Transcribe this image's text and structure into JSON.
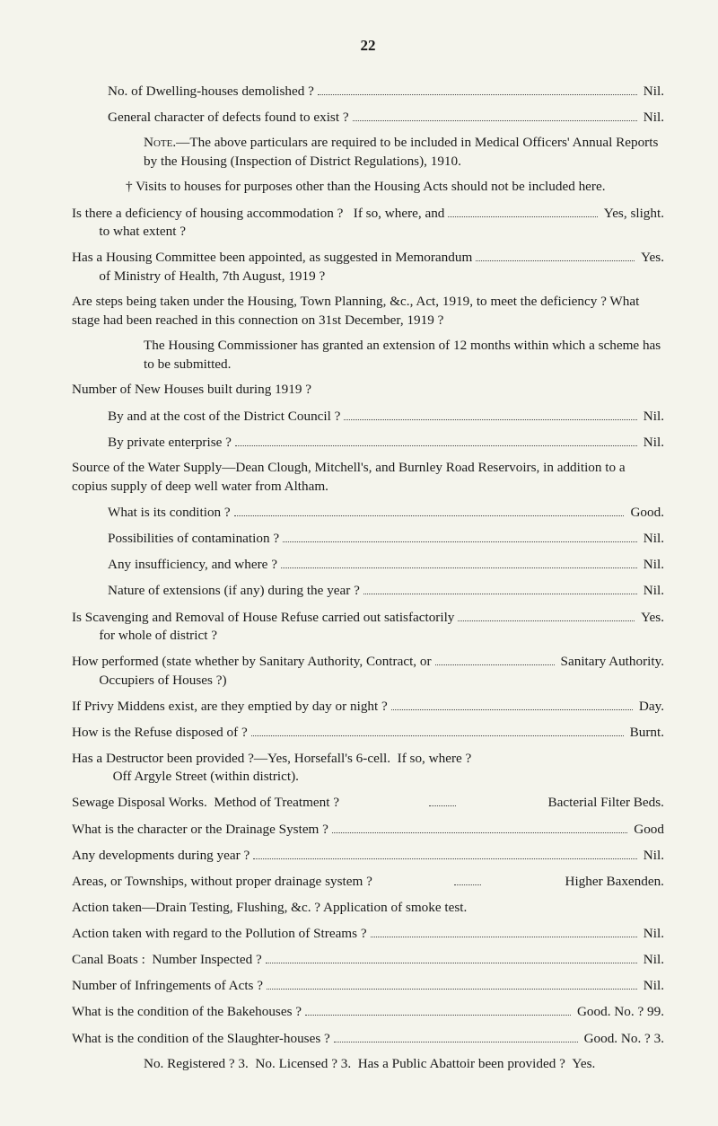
{
  "pageNumber": "22",
  "lines": [
    {
      "type": "qa",
      "indent": 40,
      "q": "No. of Dwelling-houses demolished ?",
      "a": "Nil."
    },
    {
      "type": "qa",
      "indent": 40,
      "q": "General character of defects found to exist ?",
      "a": "Nil."
    },
    {
      "type": "para",
      "indent": 80,
      "html": "<span class='smallcaps'>Note</span>.—The above particulars are required to be included in Medical Officers' Annual Reports by the Housing (Inspection of District Regulations), 1910."
    },
    {
      "type": "para",
      "indent": 60,
      "html": "† Visits to houses for purposes other than the Housing Acts should not be included here."
    },
    {
      "type": "qa",
      "indent": 0,
      "q": "Is there a deficiency of housing accommodation ?   If so, where, and\n        to what extent ?",
      "a": "Yes, slight."
    },
    {
      "type": "qa",
      "indent": 0,
      "q": "Has a Housing Committee been appointed, as suggested in Memorandum\n        of Ministry of Health, 7th August, 1919 ?",
      "a": "Yes."
    },
    {
      "type": "para",
      "indent": 0,
      "html": "Are steps being taken under the Housing, Town Planning, &c., Act, 1919, to meet the deficiency ? What stage had been reached in this connection on 31st December, 1919 ?"
    },
    {
      "type": "para",
      "indent": 80,
      "html": "The Housing Commissioner has granted an extension of 12 months within which a scheme has to be submitted."
    },
    {
      "type": "para",
      "indent": 0,
      "html": "Number of New Houses built during 1919 ?"
    },
    {
      "type": "qa",
      "indent": 40,
      "q": "By and at the cost of the District Council ?",
      "a": "Nil."
    },
    {
      "type": "qa",
      "indent": 40,
      "q": "By private enterprise ?",
      "a": "Nil."
    },
    {
      "type": "para",
      "indent": 0,
      "html": "Source of the Water Supply—Dean Clough, Mitchell's, and Burnley Road Reservoirs, in addition to a copius supply of deep well water from Altham."
    },
    {
      "type": "qa",
      "indent": 40,
      "q": "What is its condition ?",
      "a": "Good."
    },
    {
      "type": "qa",
      "indent": 40,
      "q": "Possibilities of contamination ?",
      "a": "Nil."
    },
    {
      "type": "qa",
      "indent": 40,
      "q": "Any insufficiency, and where ?",
      "a": "Nil."
    },
    {
      "type": "qa",
      "indent": 40,
      "q": "Nature of extensions (if any) during the year ?",
      "a": "Nil."
    },
    {
      "type": "qa",
      "indent": 0,
      "q": "Is Scavenging and Removal of House Refuse carried out satisfactorily\n        for whole of district ?",
      "a": "Yes."
    },
    {
      "type": "qa",
      "indent": 0,
      "q": "How performed (state whether by Sanitary Authority, Contract, or\n        Occupiers of Houses ?)",
      "a": "Sanitary Authority."
    },
    {
      "type": "qa",
      "indent": 0,
      "q": "If Privy Middens exist, are they emptied by day or night ?",
      "a": "Day."
    },
    {
      "type": "qa",
      "indent": 0,
      "q": "How is the Refuse disposed of ?",
      "a": "Burnt."
    },
    {
      "type": "para",
      "indent": 0,
      "html": "Has a Destructor been provided ?—Yes, Horsefall's 6-cell.&nbsp;&nbsp;If so, where ?<br>&nbsp;&nbsp;&nbsp;&nbsp;&nbsp;&nbsp;&nbsp;&nbsp;&nbsp;&nbsp;&nbsp;&nbsp;Off Argyle Street (within district)."
    },
    {
      "type": "qa",
      "indent": 0,
      "q": "Sewage Disposal Works.  Method of Treatment ?",
      "a": "Bacterial Filter Beds.",
      "dotsShort": true
    },
    {
      "type": "qa",
      "indent": 0,
      "q": "What is the character or the Drainage System ?",
      "a": "Good"
    },
    {
      "type": "qa",
      "indent": 0,
      "q": "Any developments during year ?",
      "a": "Nil."
    },
    {
      "type": "qa",
      "indent": 0,
      "q": "Areas, or Townships, without proper drainage system ?",
      "a": "Higher Baxenden.",
      "dotsShort": true
    },
    {
      "type": "para",
      "indent": 0,
      "html": "Action taken—Drain Testing, Flushing, &c. ? Application of smoke test."
    },
    {
      "type": "qa",
      "indent": 0,
      "q": "Action taken with regard to the Pollution of Streams ?",
      "a": "Nil."
    },
    {
      "type": "qa",
      "indent": 0,
      "q": "Canal Boats :  Number Inspected ?",
      "a": "Nil."
    },
    {
      "type": "qa",
      "indent": 0,
      "q": "Number of Infringements of Acts ?",
      "a": "Nil."
    },
    {
      "type": "qa",
      "indent": 0,
      "q": "What is the condition of the Bakehouses ?",
      "a": "Good.   No. ? 99."
    },
    {
      "type": "qa",
      "indent": 0,
      "q": "What is the condition of the Slaughter-houses ?",
      "a": "Good.   No. ? 3."
    },
    {
      "type": "para",
      "indent": 80,
      "html": "No. Registered ? 3.&nbsp;&nbsp;No. Licensed ? 3.&nbsp;&nbsp;Has a Public Abattoir been provided ?&nbsp;&nbsp;Yes."
    }
  ]
}
